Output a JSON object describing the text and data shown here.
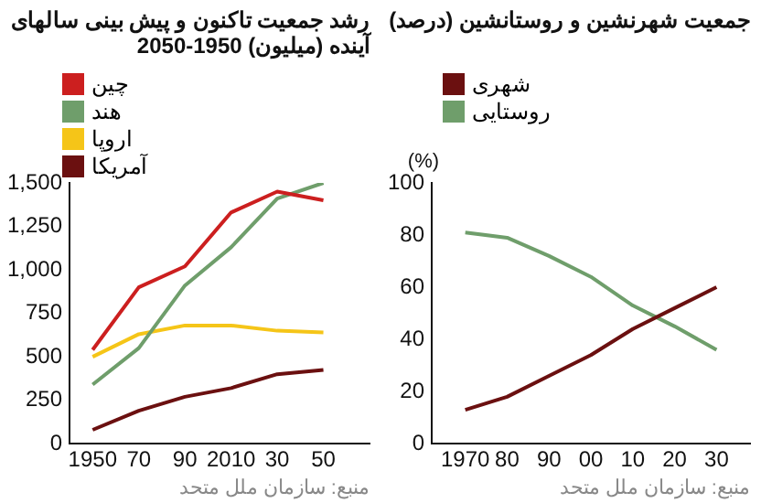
{
  "chart_data": [
    {
      "type": "line",
      "title": "رشد جمعیت تاکنون و پیش بینی سالهای آینده (میلیون) 1950-2050",
      "x": [
        1950,
        1970,
        1990,
        2010,
        2030,
        2050
      ],
      "series": [
        {
          "name": "چین",
          "color": "#cc1f1f",
          "values": [
            540,
            900,
            1020,
            1330,
            1450,
            1400
          ]
        },
        {
          "name": "هند",
          "color": "#6f9e6b",
          "values": [
            340,
            550,
            910,
            1130,
            1410,
            1500
          ]
        },
        {
          "name": "اروپا",
          "color": "#f5c518",
          "values": [
            500,
            630,
            680,
            680,
            650,
            640
          ]
        },
        {
          "name": "آمریکا",
          "color": "#6b1010",
          "values": [
            80,
            190,
            270,
            320,
            400,
            425
          ]
        }
      ],
      "xlim": [
        1940,
        2070
      ],
      "xticks": [
        {
          "value": 1950,
          "label": "1950"
        },
        {
          "value": 1970,
          "label": "70"
        },
        {
          "value": 1990,
          "label": "90"
        },
        {
          "value": 2010,
          "label": "2010"
        },
        {
          "value": 2030,
          "label": "30"
        },
        {
          "value": 2050,
          "label": "50"
        }
      ],
      "ylim": [
        0,
        1500
      ],
      "yticks": [
        0,
        250,
        500,
        750,
        {
          "value": 1000,
          "label": "1,000"
        },
        {
          "value": 1250,
          "label": "1,250"
        },
        {
          "value": 1500,
          "label": "1,500"
        }
      ],
      "grid": false,
      "legend": "top left",
      "marker": "none",
      "annotations": [
        "منبع: سازمان ملل متحد"
      ]
    },
    {
      "type": "line",
      "title": "جمعیت شهرنشین و روستانشین (درصد)",
      "ylabel": "(%)",
      "x": [
        1970,
        1980,
        1990,
        2000,
        2010,
        2020,
        2030
      ],
      "series": [
        {
          "name": "شهری",
          "color": "#6b1010",
          "values": [
            13,
            18,
            26,
            34,
            44,
            52,
            60
          ]
        },
        {
          "name": "روستایی",
          "color": "#6f9e6b",
          "values": [
            81,
            79,
            72,
            64,
            53,
            45,
            36
          ]
        }
      ],
      "xlim": [
        1962,
        2038
      ],
      "xticks": [
        {
          "value": 1970,
          "label": "1970"
        },
        {
          "value": 1980,
          "label": "80"
        },
        {
          "value": 1990,
          "label": "90"
        },
        {
          "value": 2000,
          "label": "00"
        },
        {
          "value": 2010,
          "label": "10"
        },
        {
          "value": 2020,
          "label": "20"
        },
        {
          "value": 2030,
          "label": "30"
        }
      ],
      "ylim": [
        0,
        100
      ],
      "yticks": [
        0,
        20,
        40,
        60,
        80,
        100
      ],
      "grid": false,
      "legend": "top left",
      "marker": "none",
      "annotations": [
        "منبع: سازمان ملل متحد"
      ]
    }
  ]
}
